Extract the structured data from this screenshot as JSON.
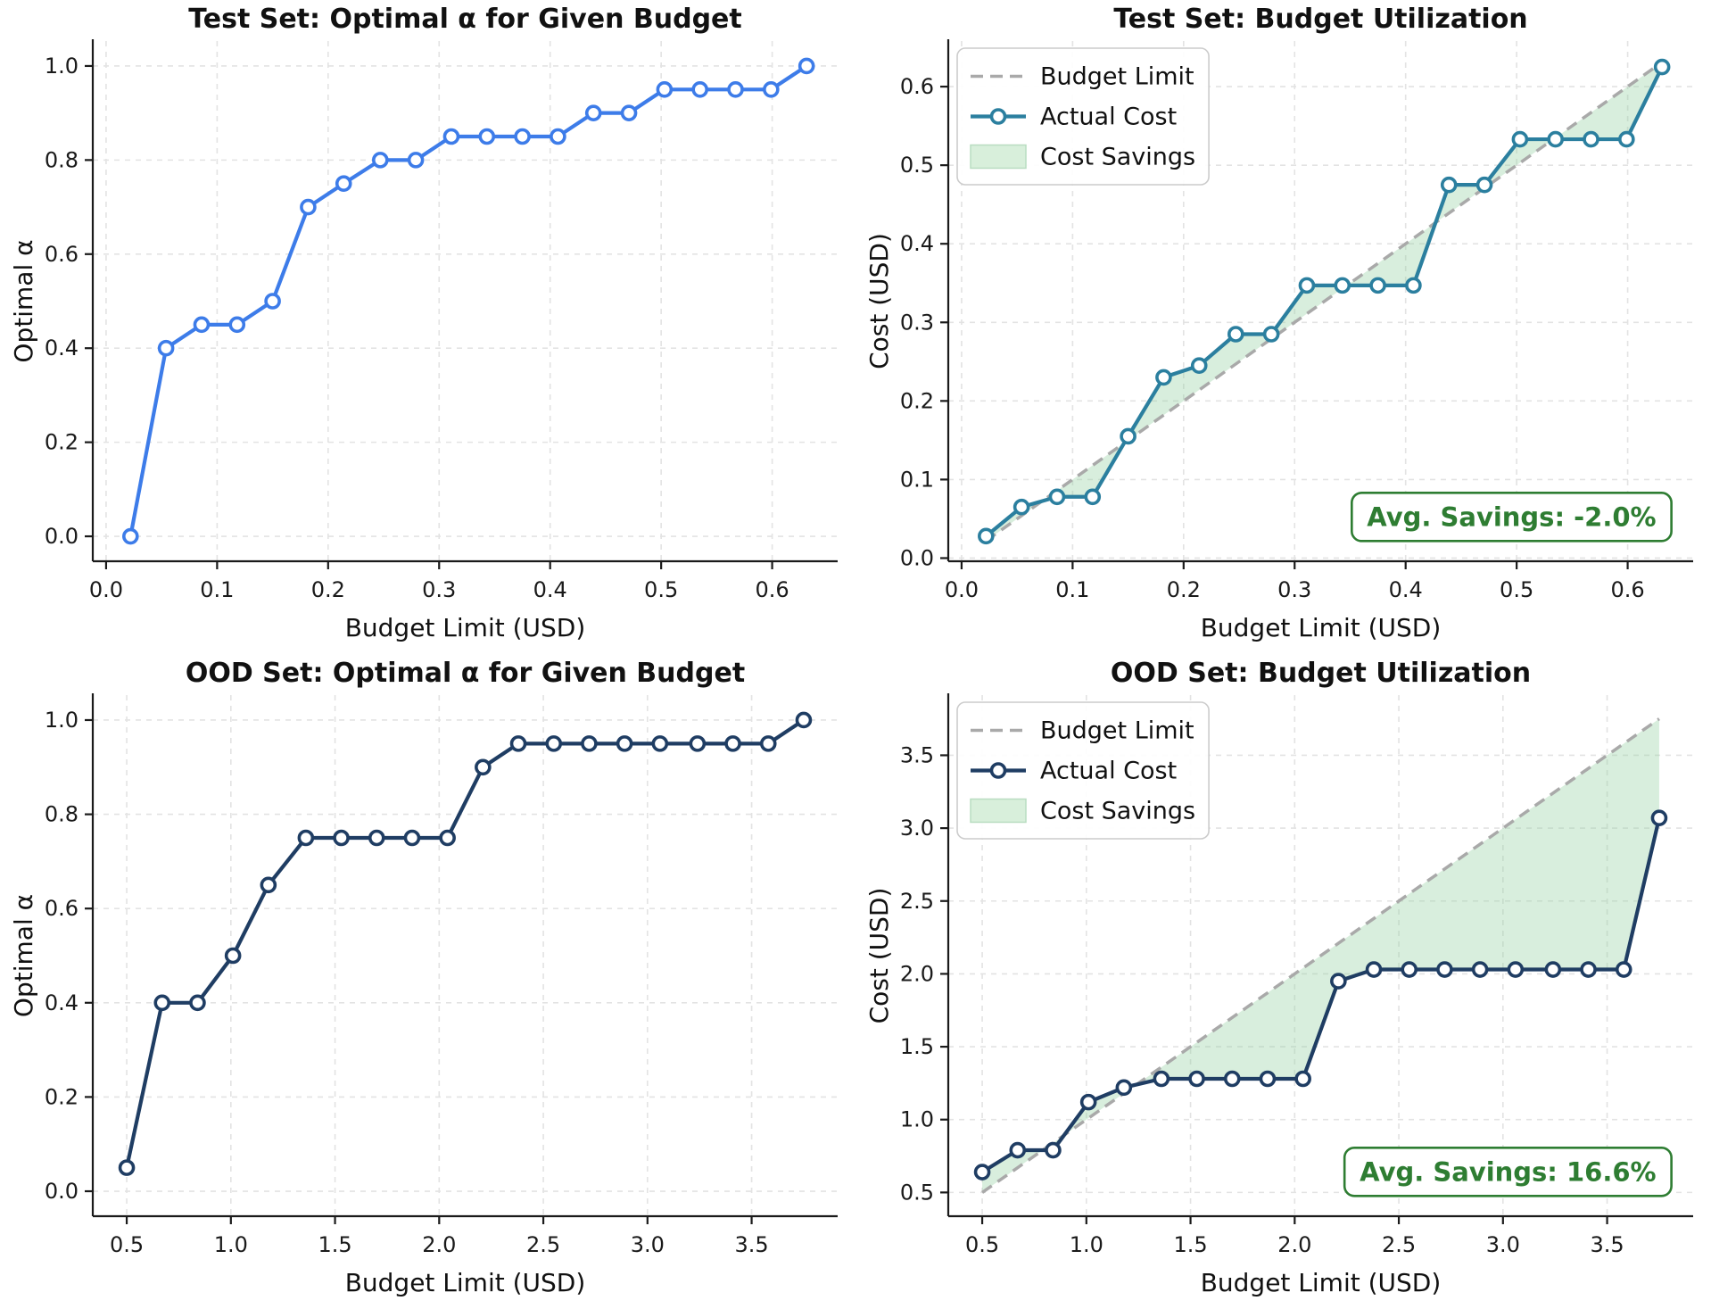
{
  "page": {
    "background": "#ffffff"
  },
  "colors": {
    "grid": "#e3e3e3",
    "spine": "#1a1a1a",
    "tick_label": "#1a1a1a",
    "budget_dash": "#a9a9a9",
    "fill_green": "#8fce9f",
    "legend_border": "#cccccc",
    "legend_patch_fill": "#d8efdb",
    "legend_patch_border": "#b9ddc1",
    "annotation_green": "#2e7d32",
    "test_alpha_line": "#3d7ce9",
    "test_cost_line": "#2b7f9f",
    "ood_line": "#1f3d63"
  },
  "chart_data": [
    {
      "id": "test-alpha",
      "type": "line",
      "title": "Test Set: Optimal α for Given Budget",
      "xlabel": "Budget Limit (USD)",
      "ylabel": "Optimal α",
      "xlim": [
        -0.012,
        0.659
      ],
      "ylim": [
        -0.053,
        1.053
      ],
      "xticks": [
        0.0,
        0.1,
        0.2,
        0.3,
        0.4,
        0.5,
        0.6
      ],
      "yticks": [
        0.0,
        0.2,
        0.4,
        0.6,
        0.8,
        1.0
      ],
      "grid": true,
      "line_color": "#3d7ce9",
      "x": [
        0.022,
        0.054,
        0.086,
        0.118,
        0.15,
        0.182,
        0.214,
        0.247,
        0.279,
        0.311,
        0.343,
        0.375,
        0.407,
        0.439,
        0.471,
        0.503,
        0.535,
        0.567,
        0.599,
        0.631
      ],
      "y": [
        0.0,
        0.4,
        0.45,
        0.45,
        0.5,
        0.7,
        0.75,
        0.8,
        0.8,
        0.85,
        0.85,
        0.85,
        0.85,
        0.9,
        0.9,
        0.95,
        0.95,
        0.95,
        0.95,
        1.0
      ]
    },
    {
      "id": "test-cost",
      "type": "line",
      "title": "Test Set: Budget Utilization",
      "xlabel": "Budget Limit (USD)",
      "ylabel": "Cost (USD)",
      "xlim": [
        -0.012,
        0.659
      ],
      "ylim": [
        -0.004,
        0.658
      ],
      "xticks": [
        0.0,
        0.1,
        0.2,
        0.3,
        0.4,
        0.5,
        0.6
      ],
      "yticks": [
        0.0,
        0.1,
        0.2,
        0.3,
        0.4,
        0.5,
        0.6
      ],
      "grid": true,
      "line_color": "#2b7f9f",
      "budget_line": {
        "color": "#a9a9a9",
        "y_equals_x": true
      },
      "fill_color": "#8fce9f",
      "legend": [
        {
          "type": "dash",
          "label": "Budget Limit"
        },
        {
          "type": "line",
          "label": "Actual Cost"
        },
        {
          "type": "patch",
          "label": "Cost Savings"
        }
      ],
      "legend_position": "upper left",
      "annotation": {
        "text": "Avg. Savings: -2.0%",
        "color": "#2e7d32",
        "position": "lower right"
      },
      "x": [
        0.022,
        0.054,
        0.086,
        0.118,
        0.15,
        0.182,
        0.214,
        0.247,
        0.279,
        0.311,
        0.343,
        0.375,
        0.407,
        0.439,
        0.471,
        0.503,
        0.535,
        0.567,
        0.599,
        0.631
      ],
      "y": [
        0.028,
        0.065,
        0.078,
        0.078,
        0.155,
        0.23,
        0.245,
        0.285,
        0.285,
        0.347,
        0.347,
        0.347,
        0.347,
        0.475,
        0.475,
        0.533,
        0.533,
        0.533,
        0.533,
        0.625
      ]
    },
    {
      "id": "ood-alpha",
      "type": "line",
      "title": "OOD Set: Optimal α for Given Budget",
      "xlabel": "Budget Limit (USD)",
      "ylabel": "Optimal α",
      "xlim": [
        0.337,
        3.913
      ],
      "ylim": [
        -0.053,
        1.053
      ],
      "xticks": [
        0.5,
        1.0,
        1.5,
        2.0,
        2.5,
        3.0,
        3.5
      ],
      "yticks": [
        0.0,
        0.2,
        0.4,
        0.6,
        0.8,
        1.0
      ],
      "grid": true,
      "line_color": "#1f3d63",
      "x": [
        0.5,
        0.67,
        0.84,
        1.01,
        1.18,
        1.36,
        1.53,
        1.7,
        1.87,
        2.04,
        2.21,
        2.38,
        2.55,
        2.72,
        2.89,
        3.06,
        3.24,
        3.41,
        3.58,
        3.75
      ],
      "y": [
        0.05,
        0.4,
        0.4,
        0.5,
        0.65,
        0.75,
        0.75,
        0.75,
        0.75,
        0.75,
        0.9,
        0.95,
        0.95,
        0.95,
        0.95,
        0.95,
        0.95,
        0.95,
        0.95,
        1.0
      ]
    },
    {
      "id": "ood-cost",
      "type": "line",
      "title": "OOD Set: Budget Utilization",
      "xlabel": "Budget Limit (USD)",
      "ylabel": "Cost (USD)",
      "xlim": [
        0.337,
        3.913
      ],
      "ylim": [
        0.337,
        3.913
      ],
      "xticks": [
        0.5,
        1.0,
        1.5,
        2.0,
        2.5,
        3.0,
        3.5
      ],
      "yticks": [
        0.5,
        1.0,
        1.5,
        2.0,
        2.5,
        3.0,
        3.5
      ],
      "grid": true,
      "line_color": "#1f3d63",
      "budget_line": {
        "color": "#a9a9a9",
        "y_equals_x": true
      },
      "fill_color": "#8fce9f",
      "legend": [
        {
          "type": "dash",
          "label": "Budget Limit"
        },
        {
          "type": "line",
          "label": "Actual Cost"
        },
        {
          "type": "patch",
          "label": "Cost Savings"
        }
      ],
      "legend_position": "upper left",
      "annotation": {
        "text": "Avg. Savings: 16.6%",
        "color": "#2e7d32",
        "position": "lower right"
      },
      "x": [
        0.5,
        0.67,
        0.84,
        1.01,
        1.18,
        1.36,
        1.53,
        1.7,
        1.87,
        2.04,
        2.21,
        2.38,
        2.55,
        2.72,
        2.89,
        3.06,
        3.24,
        3.41,
        3.58,
        3.75
      ],
      "y": [
        0.64,
        0.79,
        0.79,
        1.12,
        1.22,
        1.28,
        1.28,
        1.28,
        1.28,
        1.28,
        1.95,
        2.03,
        2.03,
        2.03,
        2.03,
        2.03,
        2.03,
        2.03,
        2.03,
        3.07
      ]
    }
  ]
}
